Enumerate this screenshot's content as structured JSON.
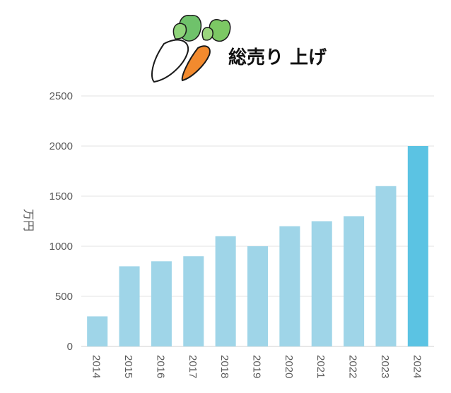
{
  "chart_data": {
    "type": "bar",
    "title": "総売り 上げ",
    "ylabel": "万円",
    "xlabel": "",
    "categories": [
      "2014",
      "2015",
      "2016",
      "2017",
      "2018",
      "2019",
      "2020",
      "2021",
      "2022",
      "2023",
      "2024"
    ],
    "values": [
      300,
      800,
      850,
      900,
      1100,
      1000,
      1200,
      1250,
      1300,
      1600,
      2000
    ],
    "ylim": [
      0,
      2500
    ],
    "yticks": [
      0,
      500,
      1000,
      1500,
      2000,
      2500
    ],
    "grid": true,
    "legend": "none",
    "bar_color": "#9fd5e8",
    "highlight_color": "#5bc3e3",
    "highlight_index": 10,
    "decoration_icons": [
      "daikon-radish-icon",
      "carrot-icon"
    ]
  }
}
